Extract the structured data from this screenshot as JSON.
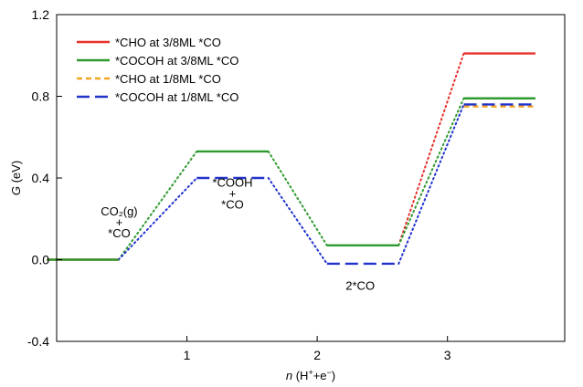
{
  "chart_data": {
    "type": "line",
    "title": "",
    "xlabel": {
      "italic": "n",
      "rest": " (H",
      "sup1": "+",
      "mid": "+e",
      "sup2": "−",
      "end": ")"
    },
    "ylabel": {
      "italic": "G",
      "rest": " (eV)"
    },
    "xlim": [
      0,
      3.9
    ],
    "ylim": [
      -0.4,
      1.2
    ],
    "xticks": [
      "1",
      "2",
      "3"
    ],
    "xtick_values": [
      1,
      2,
      3
    ],
    "yticks": [
      "-0.4",
      "0.0",
      "0.4",
      "0.8",
      "1.2"
    ],
    "ytick_values": [
      -0.4,
      0.0,
      0.4,
      0.8,
      1.2
    ],
    "grid": false,
    "legend_position": "top-left",
    "step_width": 0.55,
    "series": [
      {
        "name": "*CHO at 3/8ML *CO",
        "color": "#e8302a",
        "style": "solid",
        "levels": [
          {
            "x": 0.2,
            "y": 0.0
          },
          {
            "x": 3.4,
            "y": 1.01
          }
        ]
      },
      {
        "name": "*COCOH at 3/8ML *CO",
        "color": "#2f9a2f",
        "style": "solid",
        "levels": [
          {
            "x": 0.2,
            "y": 0.0
          },
          {
            "x": 1.35,
            "y": 0.53
          },
          {
            "x": 2.35,
            "y": 0.07
          },
          {
            "x": 3.4,
            "y": 0.79
          }
        ]
      },
      {
        "name": "*CHO at 1/8ML *CO",
        "color": "#f5a623",
        "style": "dashed-short",
        "levels": [
          {
            "x": 3.4,
            "y": 0.75
          }
        ]
      },
      {
        "name": "*COCOH at 1/8ML *CO",
        "color": "#2233cc",
        "style": "dashed-long",
        "levels": [
          {
            "x": 1.35,
            "y": 0.4
          },
          {
            "x": 2.35,
            "y": -0.02
          },
          {
            "x": 3.4,
            "y": 0.76
          }
        ]
      }
    ],
    "connectors": [
      {
        "color": "#2f9a2f",
        "from": [
          0.2,
          0.0
        ],
        "to": [
          1.35,
          0.53
        ]
      },
      {
        "color": "#2233cc",
        "from": [
          0.2,
          0.0
        ],
        "to": [
          1.35,
          0.4
        ]
      },
      {
        "color": "#2f9a2f",
        "from": [
          1.35,
          0.53
        ],
        "to": [
          2.35,
          0.07
        ]
      },
      {
        "color": "#2233cc",
        "from": [
          1.35,
          0.4
        ],
        "to": [
          2.35,
          -0.02
        ]
      },
      {
        "color": "#e8302a",
        "from": [
          2.35,
          0.07
        ],
        "to": [
          3.4,
          1.01
        ]
      },
      {
        "color": "#2f9a2f",
        "from": [
          2.35,
          0.07
        ],
        "to": [
          3.4,
          0.79
        ]
      },
      {
        "color": "#2233cc",
        "from": [
          2.35,
          -0.02
        ],
        "to": [
          3.4,
          0.76
        ]
      }
    ],
    "annotations": [
      {
        "id": "co2",
        "lines": [
          "CO₂(g)",
          "+",
          "*CO"
        ],
        "x": 0.48,
        "y": 0.11
      },
      {
        "id": "cooh",
        "lines": [
          "*COOH",
          "+",
          "*CO"
        ],
        "x": 1.35,
        "y": 0.25
      },
      {
        "id": "2co",
        "lines": [
          "2*CO"
        ],
        "x": 2.33,
        "y": -0.075
      }
    ]
  }
}
